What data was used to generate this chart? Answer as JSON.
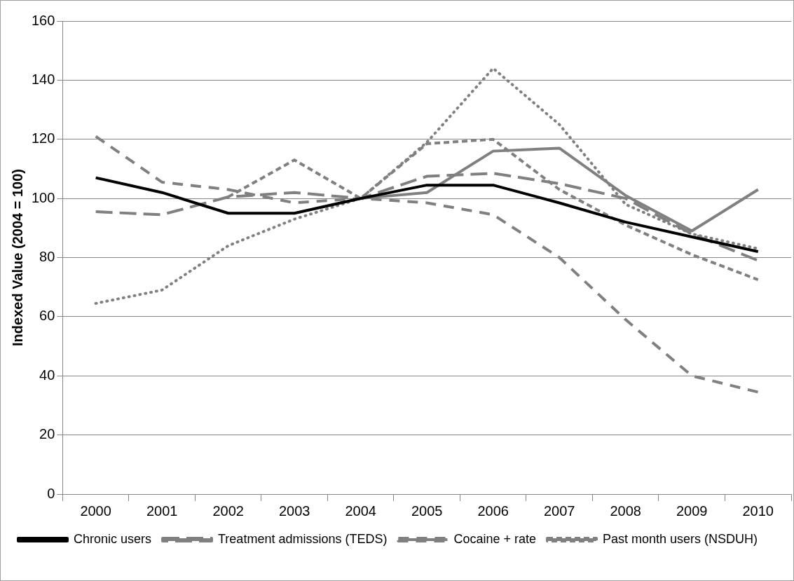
{
  "chart_data": {
    "type": "line",
    "ylabel": "Indexed Value (2004 = 100)",
    "categories": [
      "2000",
      "2001",
      "2002",
      "2003",
      "2004",
      "2005",
      "2006",
      "2007",
      "2008",
      "2009",
      "2010"
    ],
    "ylim": [
      0,
      160
    ],
    "yticks": [
      0,
      20,
      40,
      60,
      80,
      100,
      120,
      140,
      160
    ],
    "grid": "y",
    "legend": "bottom",
    "marker": "none",
    "series": [
      {
        "name": "Chronic users",
        "color": "#000000",
        "line_style": "solid",
        "values": [
          107,
          102,
          95,
          95,
          100,
          104.5,
          104.5,
          98.5,
          92,
          87,
          82
        ]
      },
      {
        "name": "Treatment admissions (TEDS)",
        "color": "#808080",
        "line_style": "long-dashed",
        "values": [
          95.5,
          94.5,
          100.5,
          102,
          100,
          107.5,
          108.5,
          105,
          100,
          88,
          79
        ]
      },
      {
        "name": "Cocaine + rate",
        "color": "#808080",
        "line_style": "dashed",
        "values": [
          121,
          105.5,
          103,
          98.5,
          100,
          98.5,
          94.5,
          80,
          59,
          40,
          34.5
        ]
      },
      {
        "name": "Past month users (NSDUH)",
        "color": "#808080",
        "line_style": "short-dashed",
        "values": [
          null,
          null,
          100.5,
          113,
          100,
          118.5,
          120,
          103,
          91,
          81,
          72.5
        ]
      },
      {
        "color": "#808080",
        "line_style": "solid",
        "values": [
          null,
          null,
          null,
          null,
          100,
          102,
          116,
          117,
          101,
          89,
          103
        ]
      },
      {
        "color": "#808080",
        "line_style": "dotted",
        "values": [
          64.5,
          69,
          84,
          93,
          100,
          119,
          144,
          125,
          98,
          88,
          83
        ]
      }
    ]
  }
}
